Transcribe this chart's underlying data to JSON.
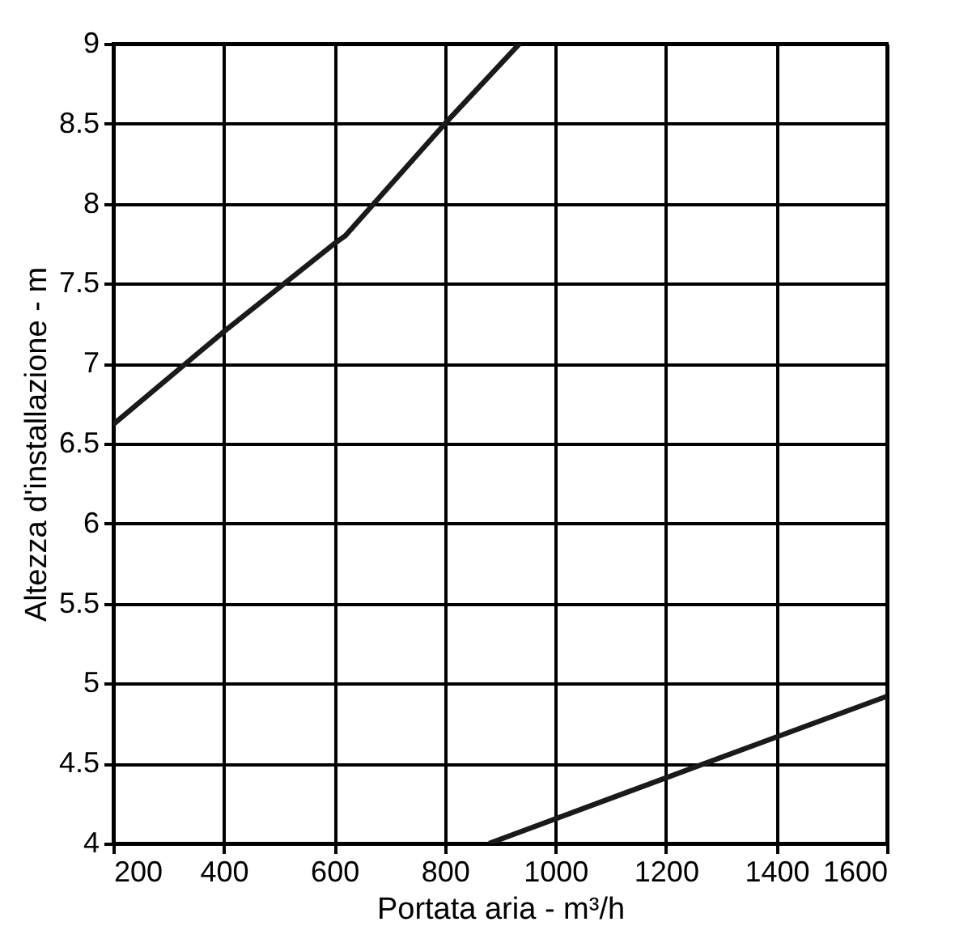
{
  "chart_data": {
    "type": "line",
    "xlabel": "Portata aria - m³/h",
    "ylabel": "Altezza d'installazione - m",
    "xlim": [
      200,
      1600
    ],
    "ylim": [
      4,
      9
    ],
    "xticks": [
      200,
      400,
      600,
      800,
      1000,
      1200,
      1400,
      1600
    ],
    "yticks": [
      4,
      4.5,
      5,
      5.5,
      6,
      6.5,
      7,
      7.5,
      8,
      8.5,
      9
    ],
    "grid": true,
    "marker": "none",
    "line_style": "solid",
    "series": [
      {
        "color": "#1a1a1a",
        "x": [
          200,
          400,
          600,
          620,
          800,
          935
        ],
        "values": [
          6.62,
          7.2,
          7.75,
          7.8,
          8.5,
          9
        ]
      },
      {
        "color": "#1a1a1a",
        "x": [
          880,
          1270,
          1600
        ],
        "values": [
          4,
          4.5,
          4.92
        ]
      }
    ]
  }
}
